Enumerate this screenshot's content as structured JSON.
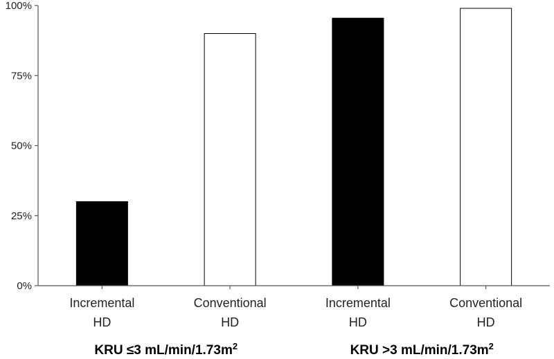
{
  "chart_data": {
    "type": "bar",
    "title": "",
    "xlabel": "",
    "ylabel": "",
    "ylim": [
      0,
      100
    ],
    "yticks": [
      0,
      25,
      50,
      75,
      100
    ],
    "ytick_labels": [
      "0%",
      "25%",
      "50%",
      "75%",
      "100%"
    ],
    "grid": false,
    "legend": "none",
    "categories": [
      [
        "Incremental",
        "HD"
      ],
      [
        "Conventional",
        "HD"
      ],
      [
        "Incremental",
        "HD"
      ],
      [
        "Conventional",
        "HD"
      ]
    ],
    "values": [
      30,
      90,
      95.5,
      99
    ],
    "bar_colors": [
      "#000000",
      "#ffffff",
      "#000000",
      "#ffffff"
    ],
    "bar_edge_color": "#000000",
    "groups": [
      {
        "label_prefix": "KRU ≤3 mL/min/1.73m",
        "superscript": "2",
        "categories": [
          0,
          1
        ]
      },
      {
        "label_prefix": "KRU >3 mL/min/1.73m",
        "superscript": "2",
        "categories": [
          2,
          3
        ]
      }
    ]
  }
}
